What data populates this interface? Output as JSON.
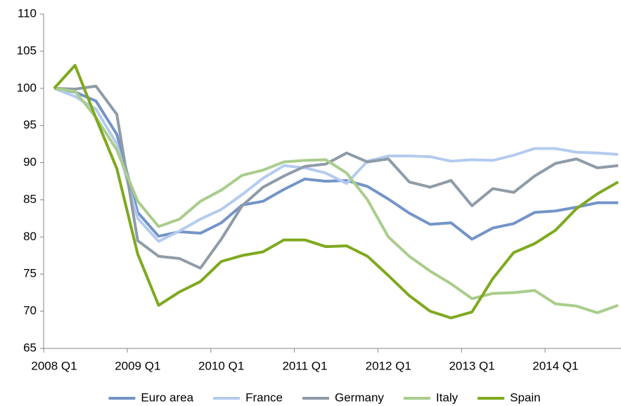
{
  "chart_data": {
    "type": "line",
    "categories": [
      "2008 Q1",
      null,
      null,
      null,
      "2009 Q1",
      null,
      null,
      null,
      "2010 Q1",
      null,
      null,
      null,
      "2011 Q1",
      null,
      null,
      null,
      "2012 Q1",
      null,
      null,
      null,
      "2013 Q1",
      null,
      null,
      null,
      "2014 Q1",
      null,
      null,
      null
    ],
    "series": [
      {
        "name": "Euro area",
        "color": "#7394c8",
        "values": [
          100,
          99.5,
          98.3,
          93.8,
          83.3,
          80.1,
          80.7,
          80.5,
          81.9,
          84.3,
          84.8,
          86.4,
          87.8,
          87.5,
          87.6,
          86.8,
          85.1,
          83.2,
          81.7,
          81.9,
          79.7,
          81.2,
          81.8,
          83.3,
          83.5,
          84,
          84.6,
          84.6
        ]
      },
      {
        "name": "France",
        "color": "#b4cbef",
        "values": [
          100,
          98.9,
          97.2,
          92.5,
          82.5,
          79.4,
          80.8,
          82.4,
          83.7,
          85.7,
          87.9,
          89.6,
          89.3,
          88.6,
          87.2,
          90.2,
          90.9,
          90.9,
          90.8,
          90.2,
          90.4,
          90.3,
          91,
          91.9,
          91.9,
          91.4,
          91.3,
          91.1
        ]
      },
      {
        "name": "Germany",
        "color": "#8f9ba8",
        "values": [
          100,
          99.9,
          100.3,
          96.5,
          79.5,
          77.4,
          77.1,
          75.8,
          79.7,
          84.2,
          86.7,
          88.2,
          89.5,
          89.8,
          91.3,
          90.1,
          90.5,
          87.4,
          86.7,
          87.6,
          84.2,
          86.5,
          86,
          88.2,
          89.9,
          90.5,
          89.3,
          89.6
        ]
      },
      {
        "name": "Italy",
        "color": "#a9cd8c",
        "values": [
          100,
          99.6,
          96.1,
          91.7,
          84.8,
          81.4,
          82.4,
          84.8,
          86.3,
          88.3,
          89,
          90.1,
          90.3,
          90.4,
          88.6,
          85,
          80,
          77.4,
          75.4,
          73.7,
          71.7,
          72.4,
          72.5,
          72.8,
          71,
          70.7,
          69.8,
          70.8
        ]
      },
      {
        "name": "Spain",
        "color": "#7ea91f",
        "values": [
          100,
          103.1,
          96,
          89.2,
          77.7,
          70.8,
          72.6,
          74,
          76.7,
          77.5,
          78,
          79.6,
          79.6,
          78.7,
          78.8,
          77.4,
          74.8,
          72.1,
          70,
          69.1,
          69.9,
          74.4,
          77.9,
          79.1,
          80.9,
          83.8,
          85.8,
          87.4
        ]
      }
    ],
    "ylim": [
      65,
      110
    ],
    "yticks": [
      65,
      70,
      75,
      80,
      85,
      90,
      95,
      100,
      105,
      110
    ],
    "grid": false,
    "legend": "bottom"
  }
}
